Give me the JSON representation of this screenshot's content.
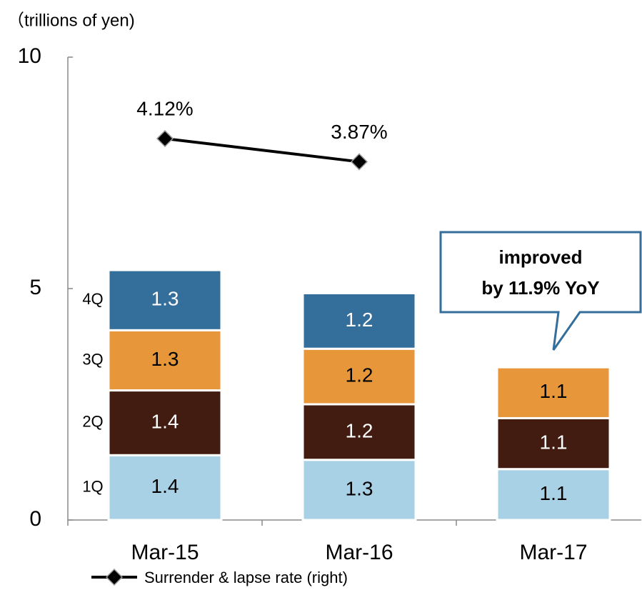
{
  "chart_data": {
    "type": "bar",
    "stacked": true,
    "unit_label": "（trillions of yen)",
    "categories": [
      "Mar-15",
      "Mar-16",
      "Mar-17"
    ],
    "series": [
      {
        "name": "1Q",
        "color": "#a9d1e6",
        "label_color": "#000000",
        "values": [
          1.4,
          1.3,
          1.1
        ]
      },
      {
        "name": "2Q",
        "color": "#421c10",
        "label_color": "#ffffff",
        "values": [
          1.4,
          1.2,
          1.1
        ]
      },
      {
        "name": "3Q",
        "color": "#e8963a",
        "label_color": "#000000",
        "values": [
          1.3,
          1.2,
          1.1
        ]
      },
      {
        "name": "4Q",
        "color": "#346e9a",
        "label_color": "#ffffff",
        "values": [
          1.3,
          1.2,
          null
        ]
      }
    ],
    "line_series": {
      "name": "Surrender & lapse rate (right)",
      "type": "line",
      "axis": "y2",
      "color": "#000000",
      "values": [
        4.12,
        3.87,
        null
      ],
      "value_labels": [
        "4.12%",
        "3.87%",
        null
      ]
    },
    "ylim": [
      0,
      10
    ],
    "yticks": [
      0,
      5,
      10
    ],
    "y2lim": [
      0,
      5
    ],
    "annotation": [
      "improved",
      "by 11.9% YoY"
    ]
  }
}
